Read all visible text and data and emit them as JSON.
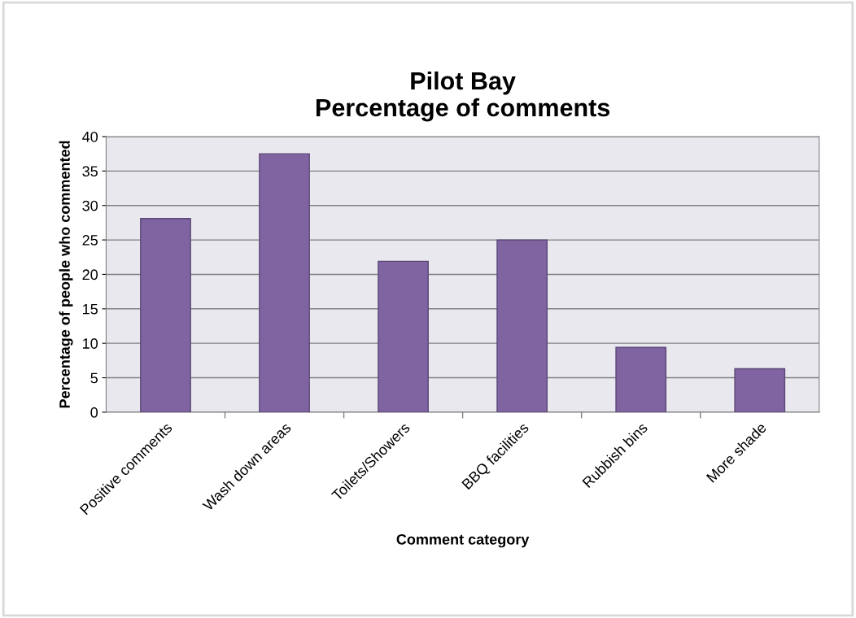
{
  "chart_data": {
    "type": "bar",
    "title": "Pilot Bay\nPercentage of comments",
    "xlabel": "Comment category",
    "ylabel": "Percentage of people who commented",
    "categories": [
      "Positive comments",
      "Wash down areas",
      "Toilets/Showers",
      "BBQ facilities",
      "Rubbish bins",
      "More shade"
    ],
    "values": [
      28.1,
      37.5,
      21.9,
      25.0,
      9.4,
      6.3
    ],
    "color": "#8064a2",
    "ylim": [
      0,
      40
    ],
    "yticks": [
      0,
      5,
      10,
      15,
      20,
      25,
      30,
      35,
      40
    ],
    "grid": "y",
    "legend": false
  }
}
